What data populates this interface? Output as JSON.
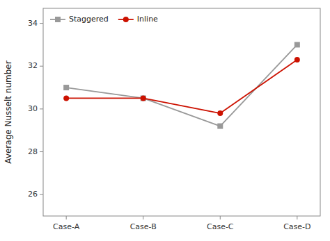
{
  "chart_data": {
    "type": "line",
    "categories": [
      "Case-A",
      "Case-B",
      "Case-C",
      "Case-D"
    ],
    "series": [
      {
        "name": "Staggered",
        "color": "#999999",
        "marker": "square",
        "values": [
          31.0,
          30.5,
          29.2,
          33.0
        ]
      },
      {
        "name": "Inline",
        "color": "#cc1100",
        "marker": "circle",
        "values": [
          30.5,
          30.5,
          29.8,
          32.3
        ]
      }
    ],
    "y_label": "Average Nusselt number",
    "ylim": [
      25.0,
      34.7
    ],
    "yticks": [
      26,
      28,
      30,
      32,
      34
    ],
    "grid": false,
    "legend": "upper left"
  }
}
